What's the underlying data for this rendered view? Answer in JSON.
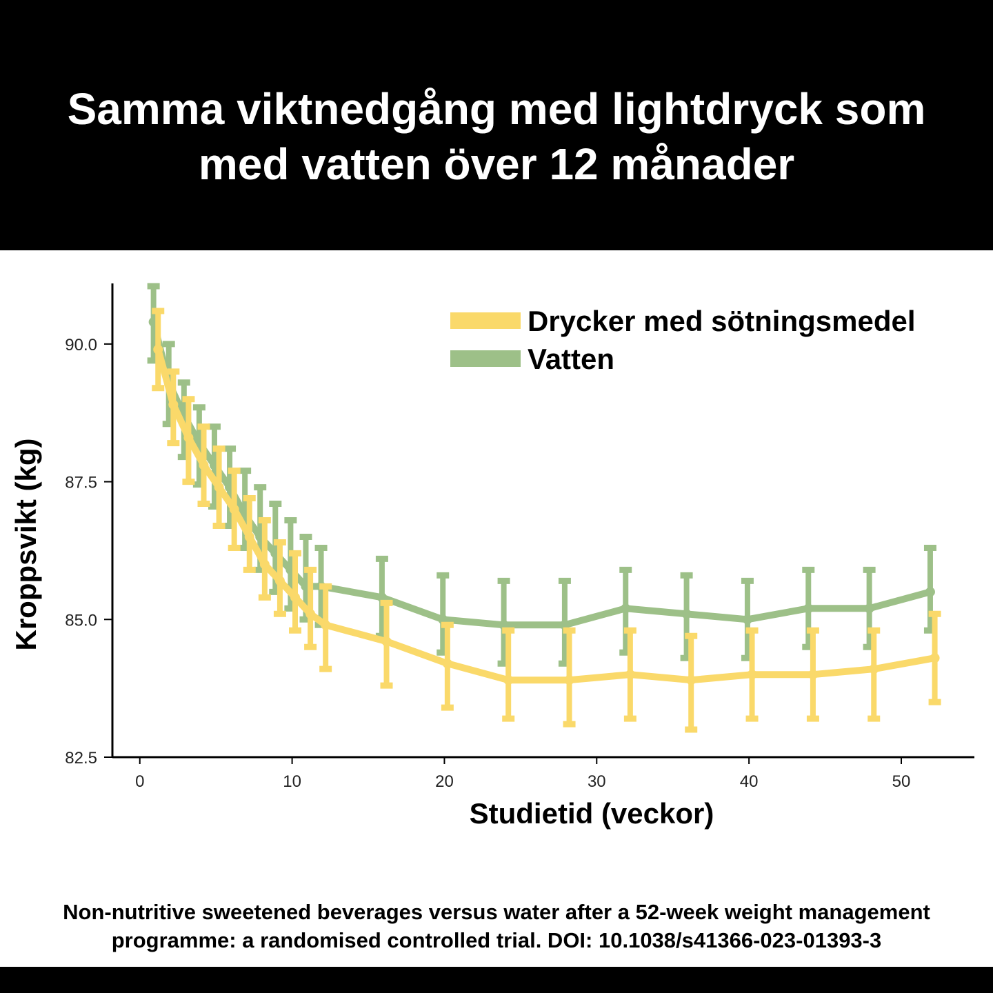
{
  "headline": {
    "line1": "Samma viktnedgång med lightdryck som",
    "line2": "med vatten över 12 månader"
  },
  "source": {
    "line1": "Non-nutritive sweetened beverages versus water after a 52-week weight management",
    "line2": "programme: a randomised controlled trial. DOI: 10.1038/s41366-023-01393-3"
  },
  "chart_data": {
    "type": "line",
    "xlabel": "Studietid (veckor)",
    "ylabel": "Kroppsvikt (kg)",
    "xlim": [
      -1.8,
      54.8
    ],
    "ylim": [
      82.5,
      91.1
    ],
    "xticks": [
      0,
      10,
      20,
      30,
      40,
      50
    ],
    "yticks": [
      82.5,
      85.0,
      87.5,
      90.0
    ],
    "ytick_labels": [
      "82.5",
      "85.0",
      "87.5",
      "90.0"
    ],
    "grid": false,
    "legend": "top-right",
    "series": [
      {
        "name": "Vatten",
        "color": "#9DC088",
        "points": [
          {
            "x": 0.9,
            "y": 90.4,
            "lo": 89.7,
            "hi": 91.05
          },
          {
            "x": 1.9,
            "y": 89.3,
            "lo": 88.55,
            "hi": 90.0
          },
          {
            "x": 2.9,
            "y": 88.7,
            "lo": 87.95,
            "hi": 89.3
          },
          {
            "x": 3.9,
            "y": 88.2,
            "lo": 87.45,
            "hi": 88.85
          },
          {
            "x": 4.9,
            "y": 87.8,
            "lo": 87.05,
            "hi": 88.5
          },
          {
            "x": 5.9,
            "y": 87.4,
            "lo": 86.7,
            "hi": 88.1
          },
          {
            "x": 6.9,
            "y": 86.9,
            "lo": 86.3,
            "hi": 87.7
          },
          {
            "x": 7.9,
            "y": 86.5,
            "lo": 85.9,
            "hi": 87.4
          },
          {
            "x": 8.9,
            "y": 86.2,
            "lo": 85.5,
            "hi": 87.1
          },
          {
            "x": 9.9,
            "y": 85.9,
            "lo": 85.2,
            "hi": 86.8
          },
          {
            "x": 10.9,
            "y": 85.6,
            "lo": 85.0,
            "hi": 86.5
          },
          {
            "x": 11.9,
            "y": 85.6,
            "lo": 84.9,
            "hi": 86.3
          },
          {
            "x": 15.9,
            "y": 85.4,
            "lo": 84.7,
            "hi": 86.1
          },
          {
            "x": 19.9,
            "y": 85.0,
            "lo": 84.4,
            "hi": 85.8
          },
          {
            "x": 23.9,
            "y": 84.9,
            "lo": 84.2,
            "hi": 85.7
          },
          {
            "x": 27.9,
            "y": 84.9,
            "lo": 84.2,
            "hi": 85.7
          },
          {
            "x": 31.9,
            "y": 85.2,
            "lo": 84.4,
            "hi": 85.9
          },
          {
            "x": 35.9,
            "y": 85.1,
            "lo": 84.3,
            "hi": 85.8
          },
          {
            "x": 39.9,
            "y": 85.0,
            "lo": 84.3,
            "hi": 85.7
          },
          {
            "x": 43.9,
            "y": 85.2,
            "lo": 84.5,
            "hi": 85.9
          },
          {
            "x": 47.9,
            "y": 85.2,
            "lo": 84.5,
            "hi": 85.9
          },
          {
            "x": 51.9,
            "y": 85.5,
            "lo": 84.8,
            "hi": 86.3
          }
        ]
      },
      {
        "name": "Drycker med sötningsmedel",
        "color": "#FAD96A",
        "points": [
          {
            "x": 1.2,
            "y": 89.9,
            "lo": 89.2,
            "hi": 90.6
          },
          {
            "x": 2.2,
            "y": 88.9,
            "lo": 88.2,
            "hi": 89.5
          },
          {
            "x": 3.2,
            "y": 88.3,
            "lo": 87.5,
            "hi": 89.0
          },
          {
            "x": 4.2,
            "y": 87.8,
            "lo": 87.1,
            "hi": 88.5
          },
          {
            "x": 5.2,
            "y": 87.4,
            "lo": 86.7,
            "hi": 88.1
          },
          {
            "x": 6.2,
            "y": 87.0,
            "lo": 86.3,
            "hi": 87.7
          },
          {
            "x": 7.2,
            "y": 86.5,
            "lo": 85.9,
            "hi": 87.2
          },
          {
            "x": 8.2,
            "y": 86.0,
            "lo": 85.4,
            "hi": 86.8
          },
          {
            "x": 9.2,
            "y": 85.7,
            "lo": 85.1,
            "hi": 86.4
          },
          {
            "x": 10.2,
            "y": 85.4,
            "lo": 84.8,
            "hi": 86.2
          },
          {
            "x": 11.2,
            "y": 85.1,
            "lo": 84.5,
            "hi": 85.9
          },
          {
            "x": 12.2,
            "y": 84.9,
            "lo": 84.1,
            "hi": 85.6
          },
          {
            "x": 16.2,
            "y": 84.6,
            "lo": 83.8,
            "hi": 85.3
          },
          {
            "x": 20.2,
            "y": 84.2,
            "lo": 83.4,
            "hi": 84.9
          },
          {
            "x": 24.2,
            "y": 83.9,
            "lo": 83.2,
            "hi": 84.8
          },
          {
            "x": 28.2,
            "y": 83.9,
            "lo": 83.1,
            "hi": 84.8
          },
          {
            "x": 32.2,
            "y": 84.0,
            "lo": 83.2,
            "hi": 84.8
          },
          {
            "x": 36.2,
            "y": 83.9,
            "lo": 83.0,
            "hi": 84.7
          },
          {
            "x": 40.2,
            "y": 84.0,
            "lo": 83.2,
            "hi": 84.8
          },
          {
            "x": 44.2,
            "y": 84.0,
            "lo": 83.2,
            "hi": 84.8
          },
          {
            "x": 48.2,
            "y": 84.1,
            "lo": 83.2,
            "hi": 84.8
          },
          {
            "x": 52.2,
            "y": 84.3,
            "lo": 83.5,
            "hi": 85.1
          }
        ]
      }
    ],
    "legend_order": [
      "Drycker med sötningsmedel",
      "Vatten"
    ]
  }
}
